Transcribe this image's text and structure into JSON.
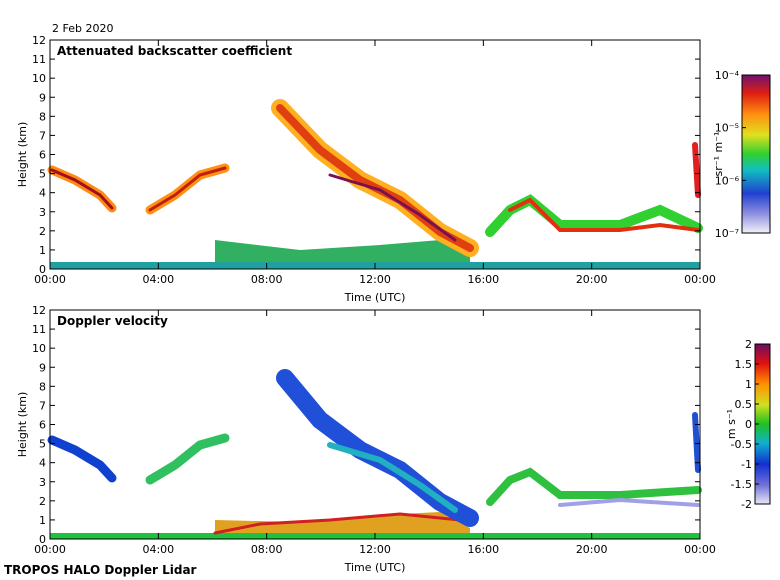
{
  "title": "2 Feb 2020",
  "footer": "TROPOS HALO Doppler Lidar",
  "chart_data": [
    {
      "type": "heatmap",
      "title": "Attenuated backscatter coefficient",
      "x_label": "Time (UTC)",
      "y_label": "Height (km)",
      "xlim": [
        0,
        24
      ],
      "xticks": [
        {
          "value": 0,
          "label": "00:00"
        },
        {
          "value": 4,
          "label": "04:00"
        },
        {
          "value": 8,
          "label": "08:00"
        },
        {
          "value": 12,
          "label": "12:00"
        },
        {
          "value": 16,
          "label": "16:00"
        },
        {
          "value": 20,
          "label": "20:00"
        },
        {
          "value": 24,
          "label": "00:00"
        }
      ],
      "ylim": [
        0,
        12
      ],
      "yticks": [
        0,
        1,
        2,
        3,
        4,
        5,
        6,
        7,
        8,
        9,
        10,
        11,
        12
      ],
      "colorbar": {
        "label": "sr⁻¹ m⁻¹",
        "scale": "log",
        "lim": [
          1e-07,
          0.0001
        ],
        "ticks": [
          {
            "value": 0.0001,
            "label": "10⁻⁴"
          },
          {
            "value": 1e-05,
            "label": "10⁻⁵"
          },
          {
            "value": 1e-06,
            "label": "10⁻⁶"
          },
          {
            "value": 1e-07,
            "label": "10⁻⁷"
          }
        ]
      }
    },
    {
      "type": "heatmap",
      "title": "Doppler velocity",
      "x_label": "Time (UTC)",
      "y_label": "Height (km)",
      "xlim": [
        0,
        24
      ],
      "xticks": [
        {
          "value": 0,
          "label": "00:00"
        },
        {
          "value": 4,
          "label": "04:00"
        },
        {
          "value": 8,
          "label": "08:00"
        },
        {
          "value": 12,
          "label": "12:00"
        },
        {
          "value": 16,
          "label": "16:00"
        },
        {
          "value": 20,
          "label": "20:00"
        },
        {
          "value": 24,
          "label": "00:00"
        }
      ],
      "ylim": [
        0,
        12
      ],
      "yticks": [
        0,
        1,
        2,
        3,
        4,
        5,
        6,
        7,
        8,
        9,
        10,
        11,
        12
      ],
      "colorbar": {
        "label": "m s⁻¹",
        "scale": "linear",
        "lim": [
          -2,
          2
        ],
        "ticks": [
          2,
          1.5,
          1,
          0.5,
          0,
          -0.5,
          -1,
          -1.5,
          -2
        ]
      }
    }
  ]
}
